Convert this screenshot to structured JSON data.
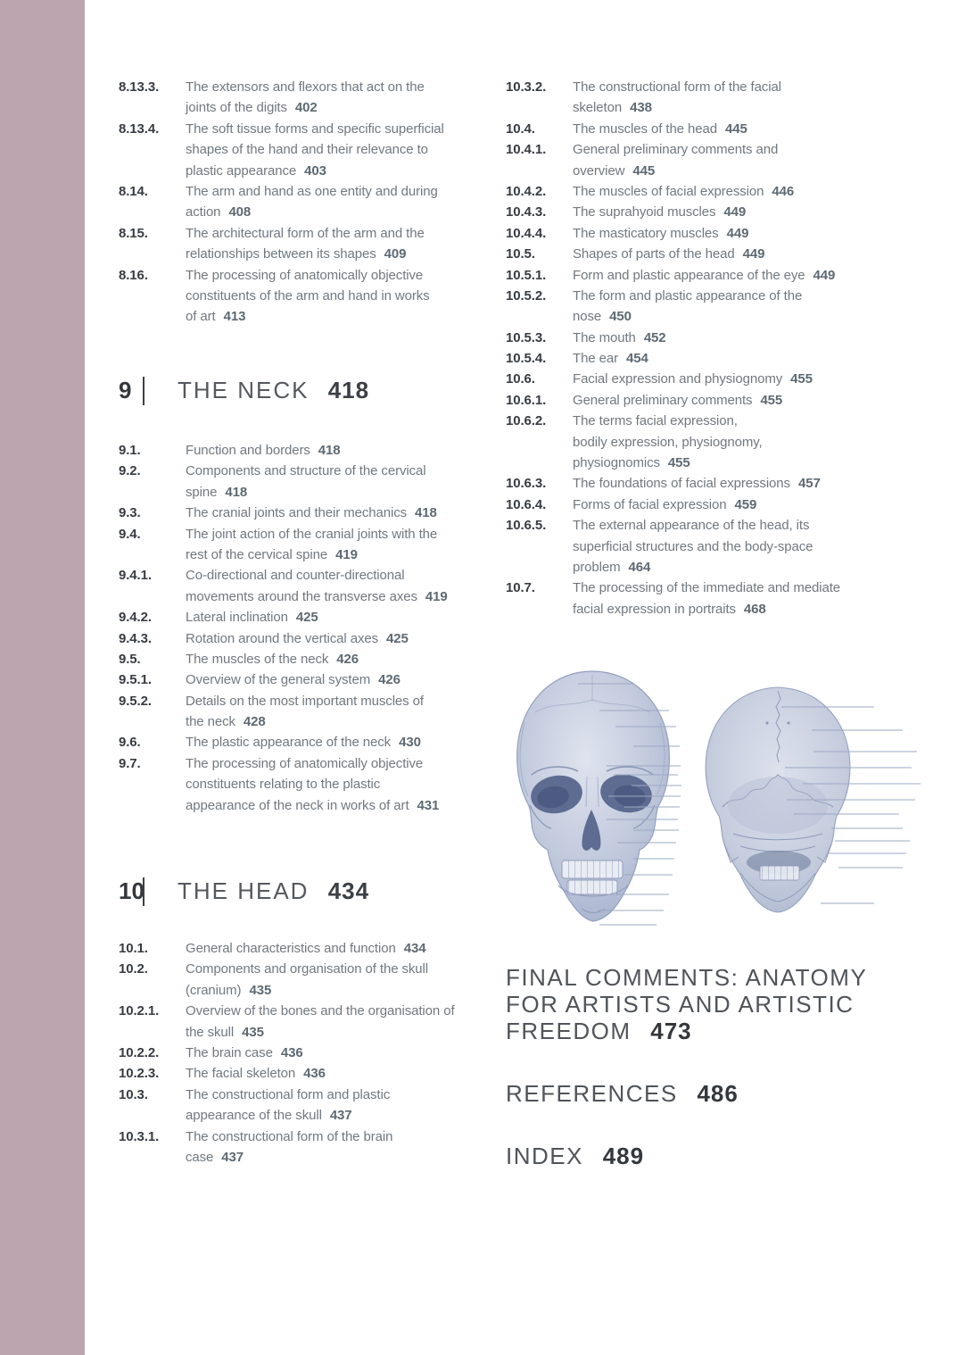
{
  "page": {
    "type": "book-table-of-contents",
    "accent_bar_color": "#bda5b0",
    "background_color": "#ffffff",
    "body_text_color": "#71787f",
    "section_number_color": "#383c42",
    "page_number_color": "#5e6973",
    "illustration_ink_color": "#9aa6c0"
  },
  "toc": {
    "divider": "|",
    "part8_entries": [
      {
        "num": "8.13.3.",
        "lines": [
          "The extensors and flexors that act on the",
          "joints of the digits"
        ],
        "page": "402"
      },
      {
        "num": "8.13.4.",
        "lines": [
          "The soft tissue forms and specific superficial",
          "shapes of the hand and their relevance to",
          "plastic appearance"
        ],
        "page": "403"
      },
      {
        "num": "8.14.",
        "lines": [
          "The arm and hand as one entity and during",
          "action"
        ],
        "page": "408"
      },
      {
        "num": "8.15.",
        "lines": [
          "The architectural form of the arm and the",
          "relationships between its shapes"
        ],
        "page": "409"
      },
      {
        "num": "8.16.",
        "lines": [
          "The processing of anatomically objective",
          "constituents of the arm and hand in works",
          "of art"
        ],
        "page": "413"
      }
    ],
    "section_neck": {
      "number": "9",
      "title": "THE NECK",
      "page": "418"
    },
    "neck_entries": [
      {
        "num": "9.1.",
        "lines": [
          "Function and borders"
        ],
        "page": "418"
      },
      {
        "num": "9.2.",
        "lines": [
          "Components and structure of the cervical",
          "spine"
        ],
        "page": "418"
      },
      {
        "num": "9.3.",
        "lines": [
          "The cranial joints and their mechanics"
        ],
        "page": "418"
      },
      {
        "num": "9.4.",
        "lines": [
          "The joint action of the cranial joints with the",
          "rest of the cervical spine"
        ],
        "page": "419"
      },
      {
        "num": "9.4.1.",
        "lines": [
          "Co-directional and counter-directional",
          "movements around the transverse axes"
        ],
        "page": "419"
      },
      {
        "num": "9.4.2.",
        "lines": [
          "Lateral inclination"
        ],
        "page": "425"
      },
      {
        "num": "9.4.3.",
        "lines": [
          "Rotation around the vertical axes"
        ],
        "page": "425"
      },
      {
        "num": "9.5.",
        "lines": [
          "The muscles of the neck"
        ],
        "page": "426"
      },
      {
        "num": "9.5.1.",
        "lines": [
          "Overview of the general system"
        ],
        "page": "426"
      },
      {
        "num": "9.5.2.",
        "lines": [
          "Details on the most important muscles of",
          "the neck"
        ],
        "page": "428"
      },
      {
        "num": "9.6.",
        "lines": [
          "The plastic appearance of the neck"
        ],
        "page": "430"
      },
      {
        "num": "9.7.",
        "lines": [
          "The processing of anatomically objective",
          "constituents relating to the plastic",
          "appearance of the neck in works of art"
        ],
        "page": "431"
      }
    ],
    "section_head": {
      "number": "10",
      "title": "THE HEAD",
      "page": "434"
    },
    "head_entries_left": [
      {
        "num": "10.1.",
        "lines": [
          "General characteristics and function"
        ],
        "page": "434"
      },
      {
        "num": "10.2.",
        "lines": [
          "Components and organisation of the skull",
          "(cranium)"
        ],
        "page": "435"
      },
      {
        "num": "10.2.1.",
        "lines": [
          "Overview of the bones and the organisation of",
          "the skull"
        ],
        "page": "435"
      },
      {
        "num": "10.2.2.",
        "lines": [
          "The brain case"
        ],
        "page": "436"
      },
      {
        "num": "10.2.3.",
        "lines": [
          "The facial skeleton"
        ],
        "page": "436"
      },
      {
        "num": "10.3.",
        "lines": [
          "The constructional form and plastic",
          "appearance of the skull"
        ],
        "page": "437"
      },
      {
        "num": "10.3.1.",
        "lines": [
          "The constructional form of the brain",
          "case"
        ],
        "page": "437"
      }
    ],
    "head_entries_right": [
      {
        "num": "10.3.2.",
        "lines": [
          "The constructional form of the facial",
          "skeleton"
        ],
        "page": "438"
      },
      {
        "num": "10.4.",
        "lines": [
          "The muscles of the head"
        ],
        "page": "445"
      },
      {
        "num": "10.4.1.",
        "lines": [
          "General preliminary comments and",
          "overview"
        ],
        "page": "445"
      },
      {
        "num": "10.4.2.",
        "lines": [
          "The muscles of facial expression"
        ],
        "page": "446"
      },
      {
        "num": "10.4.3.",
        "lines": [
          "The suprahyoid muscles"
        ],
        "page": "449"
      },
      {
        "num": "10.4.4.",
        "lines": [
          "The masticatory muscles"
        ],
        "page": "449"
      },
      {
        "num": "10.5.",
        "lines": [
          "Shapes of parts of the head"
        ],
        "page": "449"
      },
      {
        "num": "10.5.1.",
        "lines": [
          "Form and plastic appearance of the eye"
        ],
        "page": "449"
      },
      {
        "num": "10.5.2.",
        "lines": [
          "The form and plastic appearance of the",
          "nose"
        ],
        "page": "450"
      },
      {
        "num": "10.5.3.",
        "lines": [
          "The mouth"
        ],
        "page": "452"
      },
      {
        "num": "10.5.4.",
        "lines": [
          "The ear"
        ],
        "page": "454"
      },
      {
        "num": "10.6.",
        "lines": [
          "Facial expression and physiognomy"
        ],
        "page": "455"
      },
      {
        "num": "10.6.1.",
        "lines": [
          "General preliminary comments"
        ],
        "page": "455"
      },
      {
        "num": "10.6.2.",
        "lines": [
          "The terms facial expression,",
          "bodily expression, physiognomy,",
          "physiognomics"
        ],
        "page": "455"
      },
      {
        "num": "10.6.3.",
        "lines": [
          "The foundations of facial expressions"
        ],
        "page": "457"
      },
      {
        "num": "10.6.4.",
        "lines": [
          "Forms of facial expression"
        ],
        "page": "459"
      },
      {
        "num": "10.6.5.",
        "lines": [
          "The external appearance of the head, its",
          "superficial structures and the body-space",
          "problem"
        ],
        "page": "464"
      },
      {
        "num": "10.7.",
        "lines": [
          "The processing of the immediate and mediate",
          "facial expression in portraits"
        ],
        "page": "468"
      }
    ]
  },
  "endmatter": {
    "final_comments": {
      "lines": [
        "FINAL COMMENTS: ANATOMY",
        "FOR ARTISTS AND ARTISTIC",
        "FREEDOM"
      ],
      "page": "473"
    },
    "references": {
      "label": "REFERENCES",
      "page": "486"
    },
    "index": {
      "label": "INDEX",
      "page": "489"
    }
  },
  "illustrations": {
    "front_skull": "human skull, front view, pale blue line engraving with leader lines",
    "back_skull": "human skull, back view, pale blue line engraving with leader lines"
  }
}
